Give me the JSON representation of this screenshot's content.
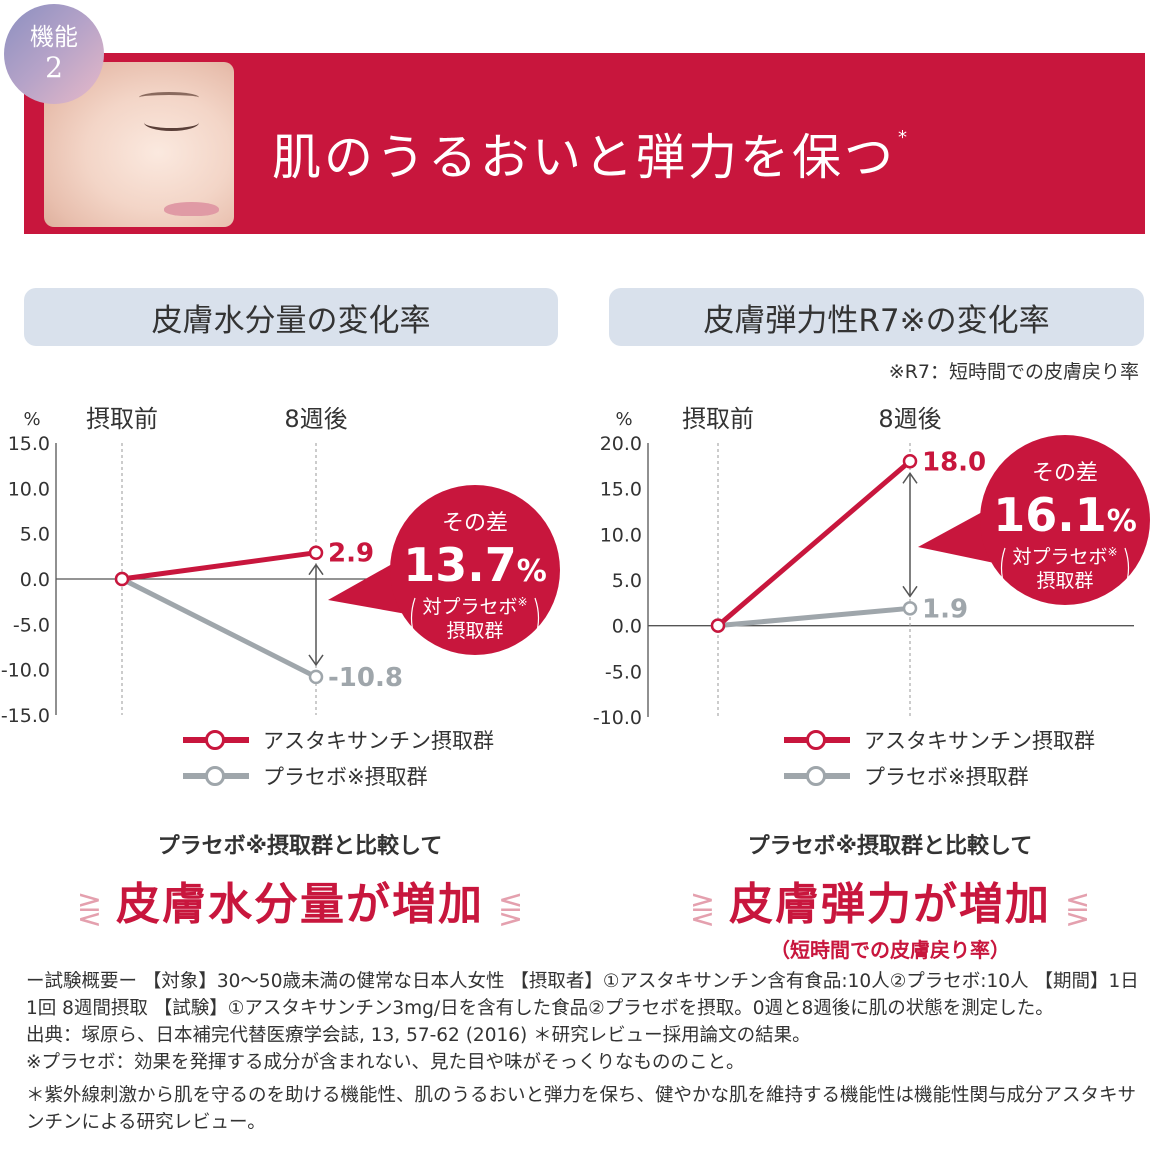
{
  "header": {
    "badge_line1": "機能",
    "badge_line2": "2",
    "title": "肌のうるおいと弾力を保つ",
    "title_mark": "*"
  },
  "colors": {
    "accent": "#c8163d",
    "placebo": "#9fa6ab",
    "panel": "#d9e1ec"
  },
  "charts": {
    "left": {
      "panel_title": "皮膚水分量の変化率",
      "bubble": {
        "line1": "その差",
        "value": "13.7",
        "unit": "%",
        "line3": "対プラセボ",
        "line3_mark": "※",
        "line4": "摂取群"
      },
      "compare": {
        "sub": "プラセボ※摂取群と比較して",
        "big": "皮膚水分量が増加"
      }
    },
    "right": {
      "panel_title": "皮膚弾力性R7※の変化率",
      "note": "※R7：短時間での皮膚戻り率",
      "bubble": {
        "line1": "その差",
        "value": "16.1",
        "unit": "%",
        "line3": "対プラセボ",
        "line3_mark": "※",
        "line4": "摂取群"
      },
      "compare": {
        "sub": "プラセボ※摂取群と比較して",
        "big": "皮膚弾力が増加",
        "paren": "（短時間での皮膚戻り率）"
      }
    }
  },
  "chart_data": [
    {
      "type": "line",
      "title": "皮膚水分量の変化率",
      "ylabel": "%",
      "categories": [
        "摂取前",
        "8週後"
      ],
      "ylim": [
        -15.0,
        15.0
      ],
      "yticks": [
        "15.0",
        "10.0",
        "5.0",
        "0.0",
        "-5.0",
        "-10.0",
        "-15.0"
      ],
      "series": [
        {
          "name": "アスタキサンチン摂取群",
          "values": [
            0,
            2.9
          ],
          "end_label": "2.9"
        },
        {
          "name": "プラセボ※摂取群",
          "values": [
            0,
            -10.8
          ],
          "end_label": "-10.8"
        }
      ]
    },
    {
      "type": "line",
      "title": "皮膚弾力性R7※の変化率",
      "ylabel": "%",
      "categories": [
        "摂取前",
        "8週後"
      ],
      "ylim": [
        -10.0,
        20.0
      ],
      "yticks": [
        "20.0",
        "15.0",
        "10.0",
        "5.0",
        "0.0",
        "-5.0",
        "-10.0"
      ],
      "series": [
        {
          "name": "アスタキサンチン摂取群",
          "values": [
            0,
            18.0
          ],
          "end_label": "18.0"
        },
        {
          "name": "プラセボ※摂取群",
          "values": [
            0,
            1.9
          ],
          "end_label": "1.9"
        }
      ]
    }
  ],
  "footer": {
    "line1": "ー試験概要ー 【対象】30〜50歳未満の健常な日本人女性 【摂取者】①アスタキサンチン含有食品:10人②プラセボ:10人 【期間】1日1回 8週間摂取 【試験】①アスタキサンチン3mg/日を含有した食品②プラセボを摂取。0週と8週後に肌の状態を測定した。",
    "source": "出典：塚原ら、日本補完代替医療学会誌, 13, 57-62 (2016) ＊研究レビュー採用論文の結果。",
    "placebo_note": "※プラセボ：効果を発揮する成分が含まれない、見た目や味がそっくりなもののこと。",
    "asterisk_note": "＊紫外線刺激から肌を守るのを助ける機能性、肌のうるおいと弾力を保ち、健やかな肌を維持する機能性は機能性関与成分アスタキサンチンによる研究レビュー。"
  }
}
